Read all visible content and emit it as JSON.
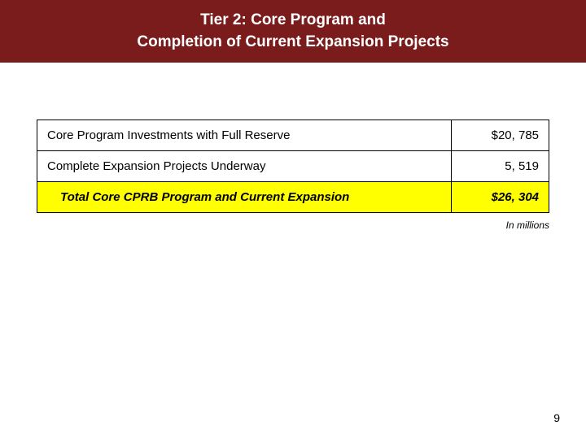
{
  "header": {
    "line1": "Tier 2:  Core Program and",
    "line2": "Completion of Current Expansion Projects",
    "background_color": "#7a1c1c",
    "text_color": "#ffffff",
    "fontsize": 19
  },
  "table": {
    "rows": [
      {
        "label": "Core Program Investments with Full Reserve",
        "value": "$20, 785",
        "is_total": false
      },
      {
        "label": "Complete Expansion Projects Underway",
        "value": "5, 519",
        "is_total": false
      },
      {
        "label": "Total Core CPRB Program and Current Expansion",
        "value": "$26, 304",
        "is_total": true
      }
    ],
    "border_color": "#000000",
    "total_row_bg": "#ffff00",
    "cell_fontsize": 15
  },
  "footnote": "In millions",
  "page_number": "9"
}
